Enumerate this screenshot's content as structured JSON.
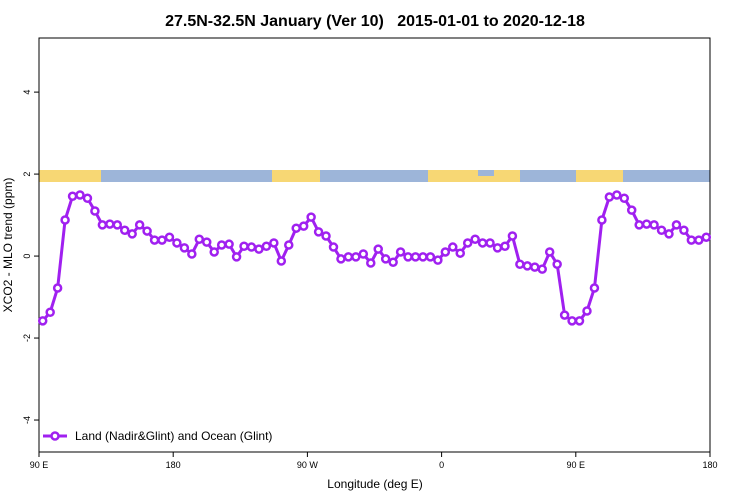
{
  "chart_data": {
    "type": "line",
    "title": "27.5N-32.5N January (Ver 10)   2015-01-01 to 2020-12-18",
    "x_label": "Longitude (deg E)",
    "y_label": "XCO2 - MLO trend (ppm)",
    "xlim": [
      90,
      540
    ],
    "ylim": [
      -4.78,
      5.32
    ],
    "xticks": [
      {
        "value": 90,
        "label": "90 E"
      },
      180,
      {
        "value": 270,
        "label": "90 W"
      },
      {
        "value": 360,
        "label": "0"
      },
      {
        "value": 450,
        "label": "90 E"
      },
      {
        "value": 540,
        "label": "180"
      }
    ],
    "yticks": [
      -4,
      -2,
      0,
      2,
      4
    ],
    "legend": "bottom-left",
    "x": [
      92.5,
      97.5,
      102.5,
      107.5,
      112.5,
      117.5,
      122.5,
      127.5,
      132.5,
      137.5,
      142.5,
      147.5,
      152.5,
      157.5,
      162.5,
      167.5,
      172.5,
      177.5,
      182.5,
      187.5,
      192.5,
      197.5,
      202.5,
      207.5,
      212.5,
      217.5,
      222.5,
      227.5,
      232.5,
      237.5,
      242.5,
      247.5,
      252.5,
      257.5,
      262.5,
      267.5,
      272.5,
      277.5,
      282.5,
      287.5,
      292.5,
      297.5,
      302.5,
      307.5,
      312.5,
      317.5,
      322.5,
      327.5,
      332.5,
      337.5,
      342.5,
      347.5,
      352.5,
      357.5,
      362.5,
      367.5,
      372.5,
      377.5,
      382.5,
      387.5,
      392.5,
      397.5,
      402.5,
      407.5,
      412.5,
      417.5,
      422.5,
      427.5,
      432.5,
      437.5,
      442.5,
      447.5,
      452.5,
      457.5,
      462.5,
      467.5,
      472.5,
      477.5,
      482.5,
      487.5,
      492.5,
      497.5,
      502.5,
      507.5,
      512.5,
      517.5,
      522.5,
      527.5,
      532.5,
      537.5
    ],
    "series": [
      {
        "name": "Land (Nadir&Glint) and Ocean (Glint)",
        "color": "#a020f0",
        "values": [
          -1.58,
          -1.37,
          -0.78,
          0.88,
          1.46,
          1.49,
          1.41,
          1.1,
          0.76,
          0.78,
          0.76,
          0.63,
          0.54,
          0.76,
          0.61,
          0.39,
          0.39,
          0.46,
          0.32,
          0.2,
          0.05,
          0.41,
          0.34,
          0.1,
          0.27,
          0.29,
          -0.02,
          0.24,
          0.22,
          0.17,
          0.24,
          0.32,
          -0.12,
          0.27,
          0.68,
          0.73,
          0.95,
          0.59,
          0.49,
          0.22,
          -0.07,
          -0.02,
          -0.02,
          0.05,
          -0.17,
          0.17,
          -0.07,
          -0.15,
          0.1,
          -0.02,
          -0.02,
          -0.02,
          -0.02,
          -0.1,
          0.1,
          0.22,
          0.07,
          0.32,
          0.41,
          0.32,
          0.32,
          0.2,
          0.24,
          0.49,
          -0.2,
          -0.24,
          -0.27,
          -0.32,
          0.1,
          -0.2,
          -1.44,
          -1.58,
          -1.58,
          -1.34,
          -0.78,
          0.88,
          1.44,
          1.49,
          1.41,
          1.12,
          0.76,
          0.78,
          0.76,
          0.63,
          0.54,
          0.76,
          0.63,
          0.39,
          0.39,
          0.46
        ]
      }
    ]
  }
}
